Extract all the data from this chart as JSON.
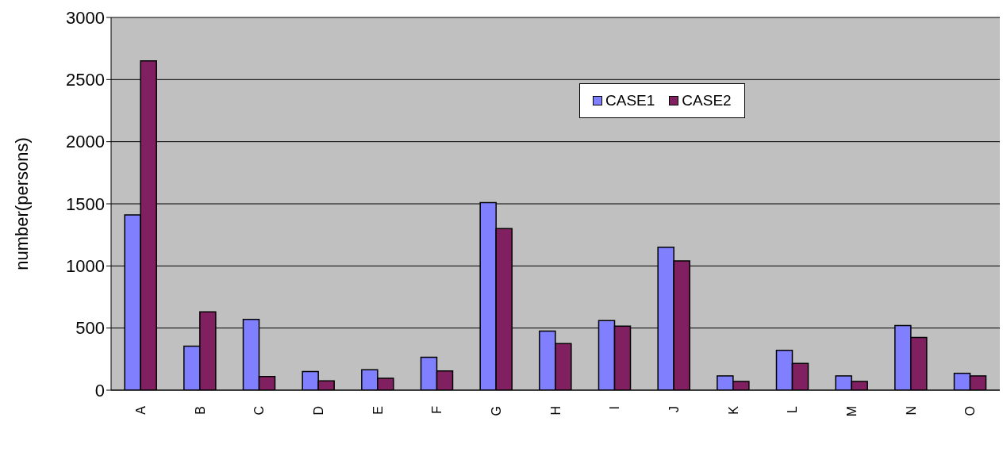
{
  "chart_data": {
    "type": "bar",
    "ylabel": "number(persons)",
    "categories": [
      "A",
      "B",
      "C",
      "D",
      "E",
      "F",
      "G",
      "H",
      "I",
      "J",
      "K",
      "L",
      "M",
      "N",
      "O"
    ],
    "series": [
      {
        "name": "CASE1",
        "color": "#8080ff",
        "values": [
          1410,
          355,
          570,
          150,
          165,
          265,
          1510,
          475,
          560,
          1150,
          115,
          320,
          115,
          520,
          135
        ]
      },
      {
        "name": "CASE2",
        "color": "#802060",
        "values": [
          2650,
          630,
          110,
          75,
          95,
          155,
          1300,
          375,
          515,
          1040,
          70,
          215,
          70,
          425,
          115
        ]
      }
    ],
    "ylim": [
      0,
      3000
    ],
    "yticks": [
      0,
      500,
      1000,
      1500,
      2000,
      2500,
      3000
    ],
    "grid": "y",
    "legend": "top"
  }
}
